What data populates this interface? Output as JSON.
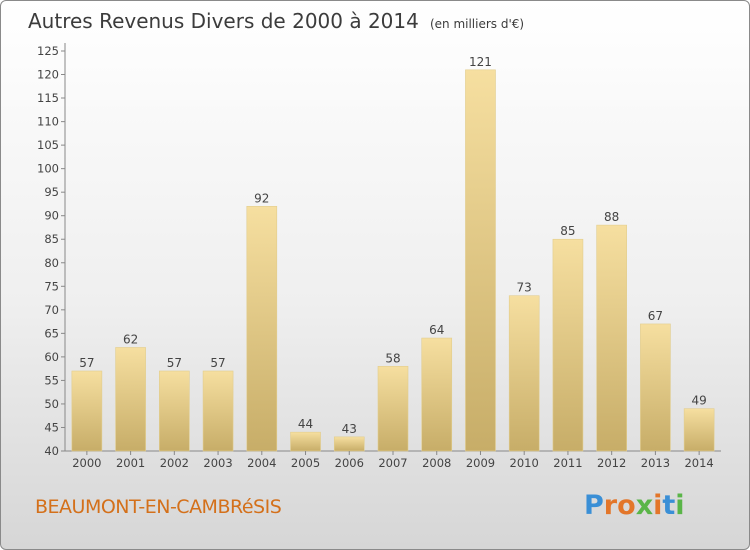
{
  "header": {
    "title": "Autres Revenus Divers de 2000 à 2014",
    "subtitle": "(en milliers d'€)"
  },
  "footer": {
    "commune": "BEAUMONT-EN-CAMBRéSIS",
    "logo_text": "Proxiti",
    "logo_colors": [
      "#3a8fd6",
      "#e3762a",
      "#e3762a",
      "#5ab548",
      "#e3762a",
      "#3a8fd6",
      "#5ab548"
    ]
  },
  "colors": {
    "bar_light": "#f6dfa0",
    "bar_dark": "#c7ad68",
    "text": "#444444"
  },
  "chart_data": {
    "type": "bar",
    "categories": [
      "2000",
      "2001",
      "2002",
      "2003",
      "2004",
      "2005",
      "2006",
      "2007",
      "2008",
      "2009",
      "2010",
      "2011",
      "2012",
      "2013",
      "2014"
    ],
    "values": [
      57,
      62,
      57,
      57,
      92,
      44,
      43,
      58,
      64,
      121,
      73,
      85,
      88,
      67,
      49
    ],
    "data_labels": [
      "57",
      "62",
      "57",
      "57",
      "92",
      "44",
      "43",
      "58",
      "64",
      "121",
      "73",
      "85",
      "88",
      "67",
      "49"
    ],
    "yticks": [
      "40",
      "45",
      "50",
      "55",
      "60",
      "65",
      "70",
      "75",
      "80",
      "85",
      "90",
      "95",
      "100",
      "105",
      "110",
      "115",
      "120",
      "125"
    ],
    "ylim": [
      40,
      125
    ],
    "grid": false
  }
}
